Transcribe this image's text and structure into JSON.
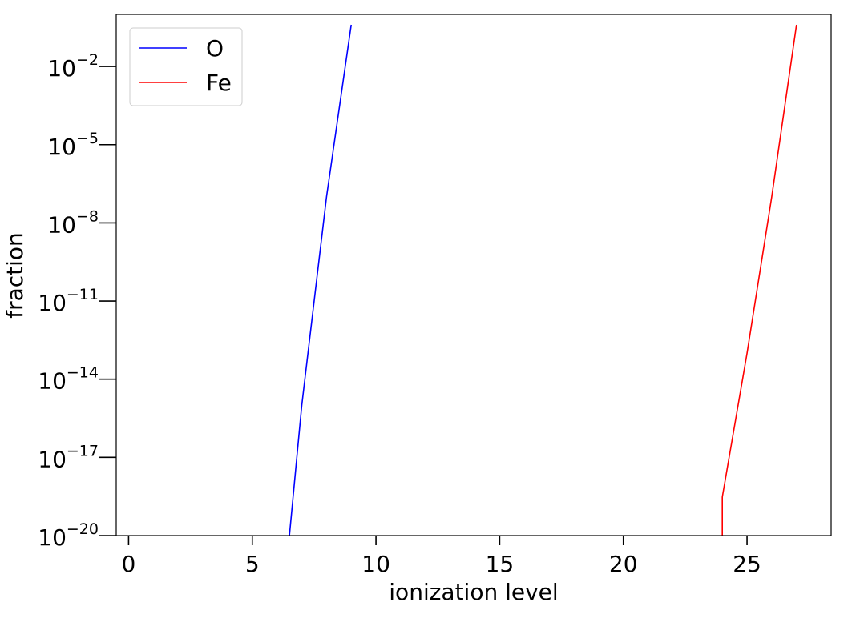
{
  "chart_data": {
    "type": "line",
    "xlabel": "ionization level",
    "ylabel": "fraction",
    "xlim": [
      -0.5,
      28.4
    ],
    "ylim": [
      1e-20,
      1
    ],
    "y_scale": "log",
    "grid": false,
    "legend_placement": "top-left",
    "x_ticks": [
      {
        "value": 0,
        "label": "0"
      },
      {
        "value": 5,
        "label": "5"
      },
      {
        "value": 10,
        "label": "10"
      },
      {
        "value": 15,
        "label": "15"
      },
      {
        "value": 20,
        "label": "20"
      },
      {
        "value": 25,
        "label": "25"
      }
    ],
    "y_ticks": [
      {
        "exponent": -2,
        "base": "10",
        "sup": "−2"
      },
      {
        "exponent": -5,
        "base": "10",
        "sup": "−5"
      },
      {
        "exponent": -8,
        "base": "10",
        "sup": "−8"
      },
      {
        "exponent": -11,
        "base": "10",
        "sup": "−11"
      },
      {
        "exponent": -14,
        "base": "10",
        "sup": "−14"
      },
      {
        "exponent": -17,
        "base": "10",
        "sup": "−17"
      },
      {
        "exponent": -20,
        "base": "10",
        "sup": "−20"
      }
    ],
    "series": [
      {
        "name": "O",
        "color": "#0000ff",
        "points": [
          [
            6.5,
            1e-20
          ],
          [
            7,
            1e-15
          ],
          [
            8,
            1e-07
          ],
          [
            9,
            0.4
          ]
        ]
      },
      {
        "name": "Fe",
        "color": "#ff0000",
        "points": [
          [
            24,
            1e-20
          ],
          [
            24,
            3e-19
          ],
          [
            25,
            1e-13
          ],
          [
            26,
            1e-07
          ],
          [
            27,
            0.4
          ]
        ]
      }
    ]
  }
}
